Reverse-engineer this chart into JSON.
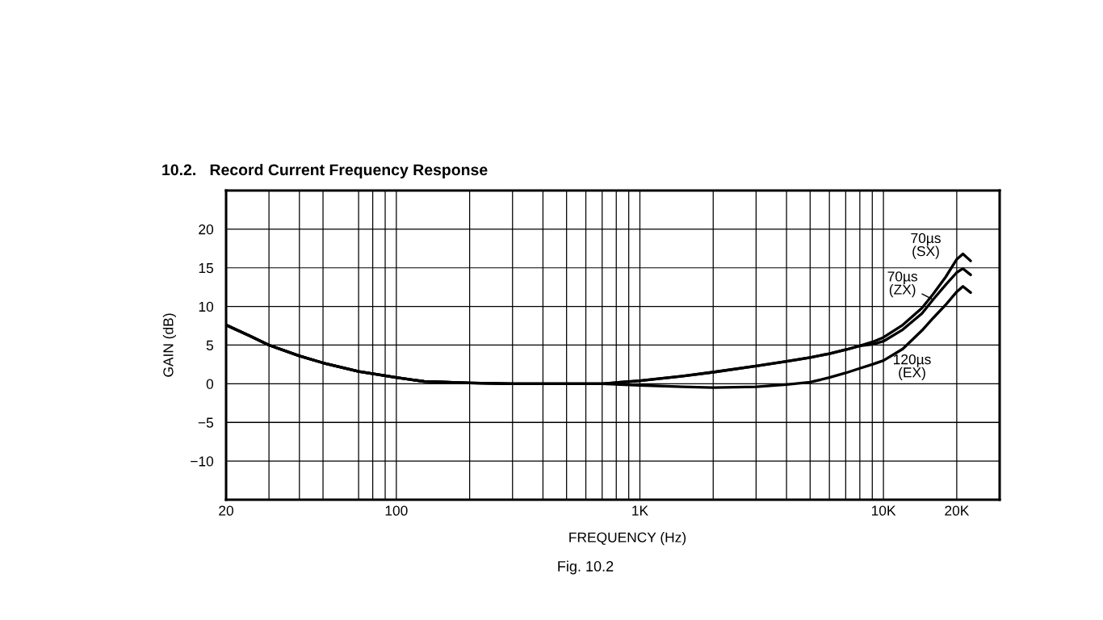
{
  "chart_data": {
    "type": "line",
    "title": "10.2.   Record Current Frequency Response",
    "xlabel": "FREQUENCY (Hz)",
    "ylabel": "GAIN (dB)",
    "annotations": [
      "Fig. 10.2"
    ],
    "log": "x",
    "grid": true,
    "x": [
      20,
      25,
      30,
      40,
      50,
      70,
      100,
      130,
      200,
      300,
      500,
      700,
      1000,
      1500,
      2000,
      3000,
      4000,
      5000,
      6000,
      7000,
      8000,
      9000,
      10000,
      12000,
      14400,
      16000,
      18000,
      20000,
      21200,
      22800
    ],
    "xlim": [
      20,
      30000
    ],
    "xticks": [
      20,
      {
        "value": 30,
        "label": null
      },
      {
        "value": 40,
        "label": null
      },
      {
        "value": 50,
        "label": null
      },
      {
        "value": 70,
        "label": null
      },
      {
        "value": 80,
        "label": null
      },
      {
        "value": 90,
        "label": null
      },
      100,
      {
        "value": 200,
        "label": null
      },
      {
        "value": 300,
        "label": null
      },
      {
        "value": 400,
        "label": null
      },
      {
        "value": 500,
        "label": null
      },
      {
        "value": 600,
        "label": null
      },
      {
        "value": 700,
        "label": null
      },
      {
        "value": 800,
        "label": null
      },
      {
        "value": 900,
        "label": null
      },
      {
        "value": 1000,
        "label": "1K"
      },
      {
        "value": 2000,
        "label": null
      },
      {
        "value": 3000,
        "label": null
      },
      {
        "value": 4000,
        "label": null
      },
      {
        "value": 5000,
        "label": null
      },
      {
        "value": 6000,
        "label": null
      },
      {
        "value": 7000,
        "label": null
      },
      {
        "value": 8000,
        "label": null
      },
      {
        "value": 9000,
        "label": null
      },
      {
        "value": 10000,
        "label": "10K"
      },
      {
        "value": 20000,
        "label": "20K"
      }
    ],
    "ylim": [
      -15,
      25
    ],
    "yticks": [
      {
        "value": -10,
        "label": "−10"
      },
      {
        "value": -5,
        "label": "−5"
      },
      0,
      5,
      10,
      15,
      20
    ],
    "series": [
      {
        "name": "70µs (SX)",
        "color": "#000000",
        "values": [
          7.6,
          6.2,
          5.0,
          3.6,
          2.7,
          1.6,
          0.8,
          0.3,
          0.1,
          0,
          0,
          0,
          0.4,
          1.0,
          1.5,
          2.3,
          2.9,
          3.4,
          3.9,
          4.4,
          4.9,
          5.4,
          6.0,
          7.6,
          9.8,
          11.6,
          13.8,
          16.1,
          16.8,
          15.9
        ]
      },
      {
        "name": "70µs (ZX)",
        "color": "#000000",
        "values": [
          7.6,
          6.2,
          5.0,
          3.6,
          2.7,
          1.6,
          0.8,
          0.3,
          0.1,
          0,
          0,
          0,
          0.4,
          1.0,
          1.5,
          2.3,
          2.9,
          3.4,
          3.9,
          4.4,
          4.9,
          5.1,
          5.5,
          7.0,
          9.1,
          10.9,
          12.8,
          14.4,
          14.9,
          14.1
        ]
      },
      {
        "name": "120µs (EX)",
        "color": "#000000",
        "values": [
          7.6,
          6.2,
          5.0,
          3.6,
          2.7,
          1.6,
          0.8,
          0.3,
          0.1,
          0,
          0,
          0,
          -0.2,
          -0.4,
          -0.5,
          -0.4,
          -0.1,
          0.2,
          0.8,
          1.4,
          2.0,
          2.5,
          3.0,
          4.5,
          6.9,
          8.5,
          10.2,
          11.9,
          12.6,
          11.8
        ]
      }
    ]
  }
}
